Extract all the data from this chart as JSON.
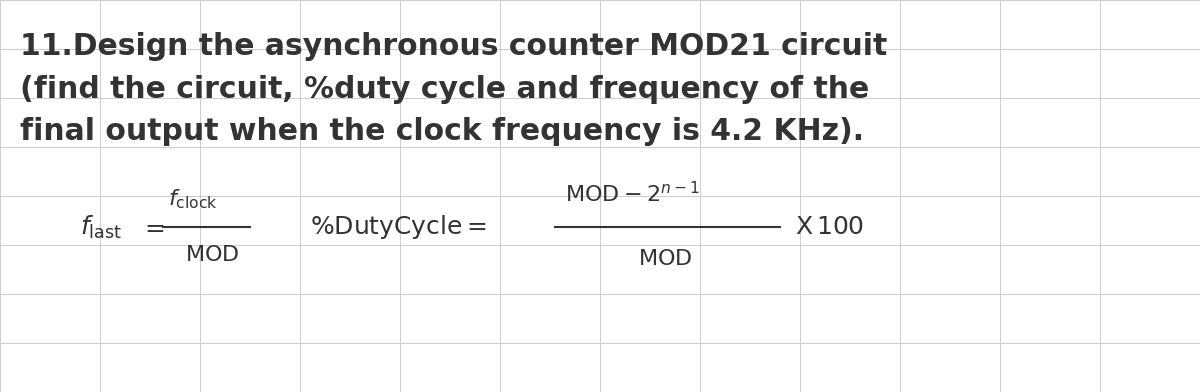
{
  "title_line1": "11.Design the asynchronous counter MOD21 circuit",
  "title_line2": "(find the circuit, %duty cycle and frequency of the",
  "title_line3": "final output when the clock frequency is 4.2 KHz).",
  "bg_color": "#ffffff",
  "grid_color": "#cccccc",
  "text_color": "#333333",
  "title_fontsize": 21.5,
  "formula_fontsize": 16
}
